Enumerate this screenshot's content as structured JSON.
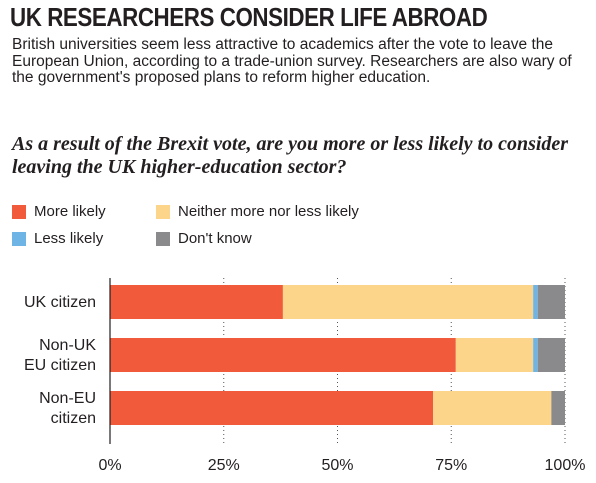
{
  "headline": "UK RESEARCHERS CONSIDER LIFE ABROAD",
  "intro": "British universities seem less attractive to academics after the vote to leave the European Union, according to a trade-union survey. Researchers are also wary of the government's proposed plans to reform higher education.",
  "chart_data": {
    "type": "bar",
    "orientation": "horizontal",
    "stacked": true,
    "title": "As a result of the Brexit vote, are you more or less likely to consider leaving the UK higher-education sector?",
    "categories": [
      "UK citizen",
      "Non-UK EU citizen",
      "Non-EU citizen"
    ],
    "category_lines": [
      [
        "UK citizen"
      ],
      [
        "Non-UK",
        "EU citizen"
      ],
      [
        "Non-EU",
        "citizen"
      ]
    ],
    "series": [
      {
        "name": "More likely",
        "color": "#f15a3a",
        "values": [
          38,
          76,
          71
        ]
      },
      {
        "name": "Neither more nor less likely",
        "color": "#fdd58a",
        "values": [
          55,
          17,
          26
        ]
      },
      {
        "name": "Less likely",
        "color": "#6eb5e6",
        "values": [
          1,
          1,
          0
        ]
      },
      {
        "name": "Don't know",
        "color": "#8a8a8c",
        "values": [
          6,
          6,
          3
        ]
      }
    ],
    "xlim": [
      0,
      100
    ],
    "xticks": [
      0,
      25,
      50,
      75,
      100
    ],
    "xtick_labels": [
      "0%",
      "25%",
      "50%",
      "75%",
      "100%"
    ],
    "grid": true,
    "legend_placement": "top"
  }
}
